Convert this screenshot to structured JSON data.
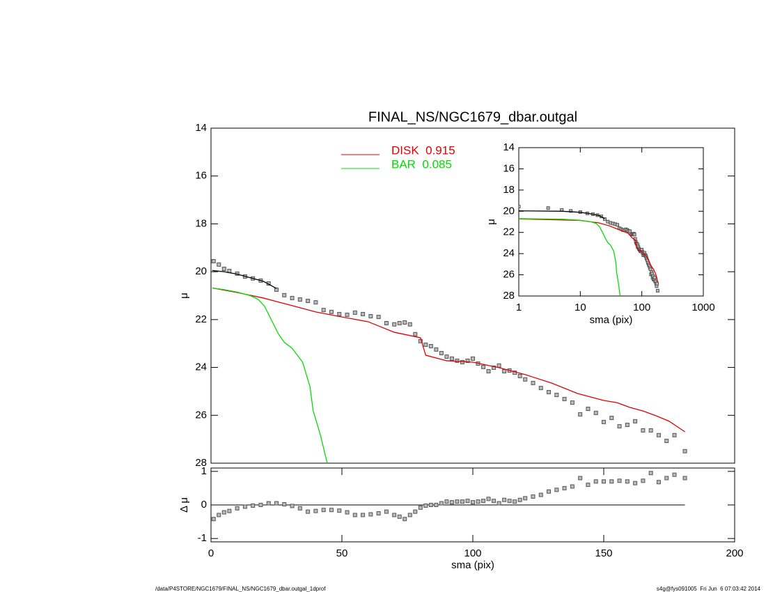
{
  "chart_data": [
    {
      "type": "line",
      "title": "FINAL_NS/NGC1679_dbar.outgal",
      "ylabel": "μ",
      "xlim": [
        0,
        200
      ],
      "ylim": [
        14,
        28
      ],
      "yticks": [
        14,
        16,
        18,
        20,
        22,
        24,
        26,
        28
      ],
      "y_inverted": true,
      "legend": "upper center",
      "series": [
        {
          "color": "#555555",
          "marker": "square",
          "x": [
            1,
            3,
            5,
            7,
            10,
            13,
            16,
            19,
            22,
            25,
            28,
            31,
            34,
            37,
            40,
            43,
            46,
            49,
            52,
            55,
            58,
            61,
            64,
            67,
            70,
            72,
            74,
            76,
            78,
            80,
            82,
            84,
            86,
            88,
            90,
            92,
            94,
            96,
            98,
            100,
            102,
            104,
            106,
            108,
            110,
            112,
            114,
            116,
            118,
            120,
            123,
            126,
            129,
            132,
            135,
            138,
            141,
            144,
            147,
            150,
            153,
            156,
            159,
            162,
            165,
            168,
            171,
            174,
            177,
            181
          ],
          "values": [
            19.56,
            19.7,
            19.88,
            19.97,
            20.08,
            20.2,
            20.28,
            20.37,
            20.49,
            20.75,
            20.98,
            21.1,
            21.16,
            21.22,
            21.28,
            21.6,
            21.68,
            21.77,
            21.8,
            21.71,
            21.77,
            21.86,
            21.89,
            22.15,
            22.2,
            22.15,
            22.12,
            22.2,
            22.61,
            22.9,
            23.05,
            23.11,
            23.25,
            23.4,
            23.55,
            23.63,
            23.72,
            23.78,
            23.72,
            23.63,
            23.84,
            23.98,
            24.16,
            24.01,
            23.92,
            24.16,
            24.13,
            24.22,
            24.36,
            24.5,
            24.65,
            24.86,
            25.03,
            25.15,
            25.32,
            25.47,
            25.96,
            25.73,
            25.9,
            26.28,
            26.11,
            26.46,
            26.4,
            26.25,
            26.63,
            26.63,
            26.83,
            27.07,
            26.83,
            27.5
          ]
        },
        {
          "color": "#000000",
          "x": [
            0.5,
            5,
            10,
            15,
            20,
            25
          ],
          "values": [
            19.95,
            20.0,
            20.1,
            20.25,
            20.4,
            20.7
          ]
        },
        {
          "name": "DISK  0.915",
          "color": "#e00000",
          "x": [
            0.5,
            10,
            20,
            30,
            40,
            50,
            60,
            70,
            80,
            82,
            90,
            100,
            110,
            120,
            130,
            140,
            150,
            155,
            160,
            165,
            170,
            175,
            181
          ],
          "values": [
            20.68,
            20.87,
            21.1,
            21.39,
            21.68,
            21.89,
            22.09,
            22.53,
            22.76,
            23.49,
            23.72,
            23.78,
            24.01,
            24.3,
            24.65,
            25.09,
            25.38,
            25.47,
            25.67,
            25.82,
            26.02,
            26.25,
            26.69
          ]
        },
        {
          "name": "BAR  0.085",
          "color": "#00dd00",
          "x": [
            0.5,
            5,
            10,
            15,
            18,
            20.5,
            23,
            25.8,
            28,
            31,
            35,
            37.8,
            39,
            41.8,
            44.4
          ],
          "values": [
            20.68,
            20.75,
            20.85,
            21.0,
            21.15,
            21.45,
            22.0,
            22.61,
            22.95,
            23.2,
            23.78,
            24.8,
            25.8,
            26.83,
            28.0
          ]
        }
      ]
    },
    {
      "type": "scatter",
      "xlabel": "sma (pix)",
      "ylabel": "Δ μ",
      "xlim": [
        0,
        200
      ],
      "xticks": [
        0,
        50,
        100,
        150,
        200
      ],
      "ylim": [
        -1.1,
        1.1
      ],
      "yticks": [
        -1,
        0,
        1
      ],
      "reference_line": 0,
      "series": [
        {
          "color": "#555555",
          "marker": "square",
          "x": [
            1,
            3,
            5,
            7,
            10,
            13,
            16,
            19,
            22,
            25,
            28,
            31,
            34,
            37,
            40,
            43,
            46,
            49,
            52,
            55,
            58,
            61,
            64,
            67,
            70,
            72,
            74,
            76,
            78,
            80,
            82,
            84,
            86,
            88,
            90,
            92,
            94,
            96,
            98,
            100,
            102,
            104,
            106,
            108,
            110,
            112,
            114,
            116,
            118,
            120,
            123,
            126,
            129,
            132,
            135,
            138,
            141,
            144,
            147,
            150,
            153,
            156,
            159,
            162,
            165,
            168,
            171,
            174,
            177,
            181
          ],
          "values": [
            -0.42,
            -0.3,
            -0.22,
            -0.18,
            -0.1,
            -0.05,
            -0.02,
            0,
            0.05,
            0.05,
            0.02,
            -0.03,
            -0.1,
            -0.2,
            -0.18,
            -0.15,
            -0.15,
            -0.17,
            -0.22,
            -0.3,
            -0.3,
            -0.28,
            -0.25,
            -0.2,
            -0.3,
            -0.35,
            -0.42,
            -0.3,
            -0.2,
            -0.08,
            -0.02,
            0,
            0,
            0.05,
            0.1,
            0.08,
            0.1,
            0.1,
            0.12,
            0.08,
            0.1,
            0.12,
            0.18,
            0.12,
            0.05,
            0.15,
            0.12,
            0.1,
            0.15,
            0.2,
            0.25,
            0.3,
            0.4,
            0.45,
            0.5,
            0.55,
            0.8,
            0.6,
            0.7,
            0.7,
            0.7,
            0.72,
            0.7,
            0.65,
            0.72,
            0.95,
            0.68,
            0.8,
            0.9,
            0.8
          ]
        }
      ]
    },
    {
      "type": "inset",
      "xlabel": "sma (pix)",
      "ylabel": "μ",
      "log_x": true,
      "xlim": [
        1,
        1000
      ],
      "xticks": [
        1,
        10,
        100,
        1000
      ],
      "ylim": [
        14,
        28
      ],
      "yticks": [
        14,
        16,
        18,
        20,
        22,
        24,
        26,
        28
      ],
      "y_inverted": true
    }
  ],
  "footer": {
    "left": "/data/P4STORE/NGC1679/FINAL_NS/NGC1679_dbar.outgal_1dprof",
    "right": "s4g@fys091005  Fri Jun  6 07:03:42 2014"
  }
}
